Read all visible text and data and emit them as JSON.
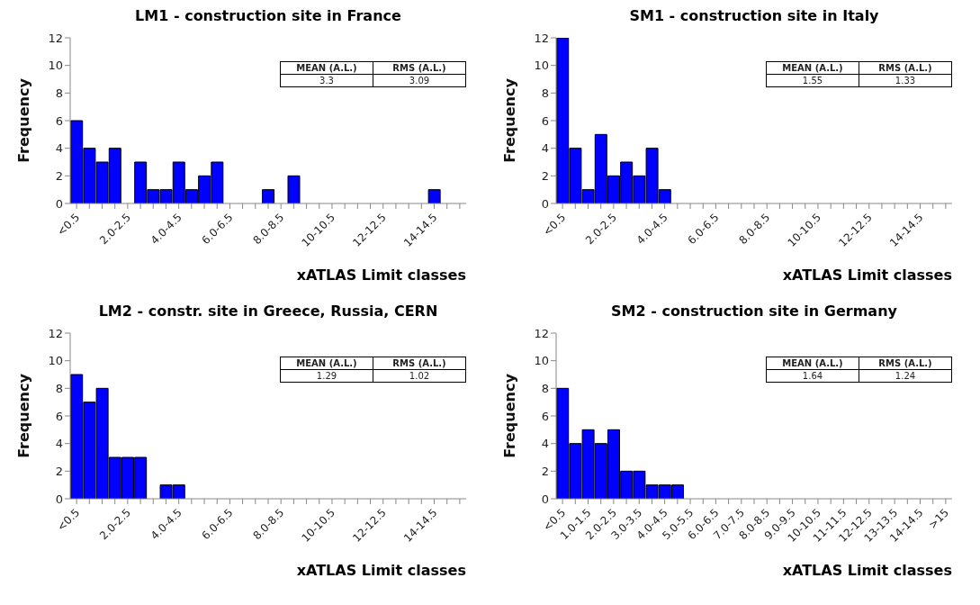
{
  "chart_data": [
    {
      "type": "bar",
      "title": "LM1 - construction site in France",
      "xlabel": "xATLAS Limit classes",
      "ylabel": "Frequency",
      "categories": [
        "<0.5",
        null,
        null,
        null,
        "2.0-2.5",
        null,
        null,
        null,
        "4.0-4.5",
        null,
        null,
        null,
        "6.0-6.5",
        null,
        null,
        null,
        "8.0-8.5",
        null,
        null,
        null,
        "10-10.5",
        null,
        null,
        null,
        "12-12.5",
        null,
        null,
        null,
        "14-14.5",
        null,
        null
      ],
      "values": [
        6,
        4,
        3,
        4,
        0,
        3,
        1,
        1,
        3,
        1,
        2,
        3,
        0,
        0,
        0,
        1,
        0,
        2,
        0,
        0,
        0,
        0,
        0,
        0,
        0,
        0,
        0,
        0,
        1,
        0,
        0
      ],
      "color": "#0000ff",
      "ylim": [
        0,
        12
      ],
      "yticks": [
        0,
        2,
        4,
        6,
        8,
        10,
        12
      ],
      "annotations": [
        "MEAN (A.L.)",
        "RMS (A.L.)",
        "3.3",
        "3.09"
      ]
    },
    {
      "type": "bar",
      "title": "SM1 - construction site in Italy",
      "xlabel": "xATLAS Limit classes",
      "ylabel": "Frequency",
      "categories": [
        "<0.5",
        null,
        null,
        null,
        "2.0-2.5",
        null,
        null,
        null,
        "4.0-4.5",
        null,
        null,
        null,
        "6.0-6.5",
        null,
        null,
        null,
        "8.0-8.5",
        null,
        null,
        null,
        "10-10.5",
        null,
        null,
        null,
        "12-12.5",
        null,
        null,
        null,
        "14-14.5",
        null,
        null
      ],
      "values": [
        12,
        4,
        1,
        5,
        2,
        3,
        2,
        4,
        1,
        0,
        0,
        0,
        0,
        0,
        0,
        0,
        0,
        0,
        0,
        0,
        0,
        0,
        0,
        0,
        0,
        0,
        0,
        0,
        0,
        0,
        0
      ],
      "color": "#0000ff",
      "ylim": [
        0,
        12
      ],
      "yticks": [
        0,
        2,
        4,
        6,
        8,
        10,
        12
      ],
      "annotations": [
        "MEAN (A.L.)",
        "RMS (A.L.)",
        "1.55",
        "1.33"
      ]
    },
    {
      "type": "bar",
      "title": "LM2 - constr. site in Greece, Russia, CERN",
      "xlabel": "xATLAS Limit classes",
      "ylabel": "Frequency",
      "categories": [
        "<0.5",
        null,
        null,
        null,
        "2.0-2.5",
        null,
        null,
        null,
        "4.0-4.5",
        null,
        null,
        null,
        "6.0-6.5",
        null,
        null,
        null,
        "8.0-8.5",
        null,
        null,
        null,
        "10-10.5",
        null,
        null,
        null,
        "12-12.5",
        null,
        null,
        null,
        "14-14.5",
        null,
        null
      ],
      "values": [
        9,
        7,
        8,
        3,
        3,
        3,
        0,
        1,
        1,
        0,
        0,
        0,
        0,
        0,
        0,
        0,
        0,
        0,
        0,
        0,
        0,
        0,
        0,
        0,
        0,
        0,
        0,
        0,
        0,
        0,
        0
      ],
      "color": "#0000ff",
      "ylim": [
        0,
        12
      ],
      "yticks": [
        0,
        2,
        4,
        6,
        8,
        10,
        12
      ],
      "annotations": [
        "MEAN (A.L.)",
        "RMS (A.L.)",
        "1.29",
        "1.02"
      ]
    },
    {
      "type": "bar",
      "title": "SM2 - construction site in Germany",
      "xlabel": "xATLAS Limit classes",
      "ylabel": "Frequency",
      "categories": [
        "<0.5",
        null,
        "1.0-1.5",
        null,
        "2.0-2.5",
        null,
        "3.0-3.5",
        null,
        "4.0-4.5",
        null,
        "5.0-5.5",
        null,
        "6.0-6.5",
        null,
        "7.0-7.5",
        null,
        "8.0-8.5",
        null,
        "9.0-9.5",
        null,
        "10-10.5",
        null,
        "11-11.5",
        null,
        "12-12.5",
        null,
        "13-13.5",
        null,
        "14-14.5",
        null,
        ">15"
      ],
      "values": [
        8,
        4,
        5,
        4,
        5,
        2,
        2,
        1,
        1,
        1,
        0,
        0,
        0,
        0,
        0,
        0,
        0,
        0,
        0,
        0,
        0,
        0,
        0,
        0,
        0,
        0,
        0,
        0,
        0,
        0,
        0
      ],
      "color": "#0000ff",
      "ylim": [
        0,
        12
      ],
      "yticks": [
        0,
        2,
        4,
        6,
        8,
        10,
        12
      ],
      "annotations": [
        "MEAN (A.L.)",
        "RMS (A.L.)",
        "1.64",
        "1.24"
      ]
    }
  ]
}
